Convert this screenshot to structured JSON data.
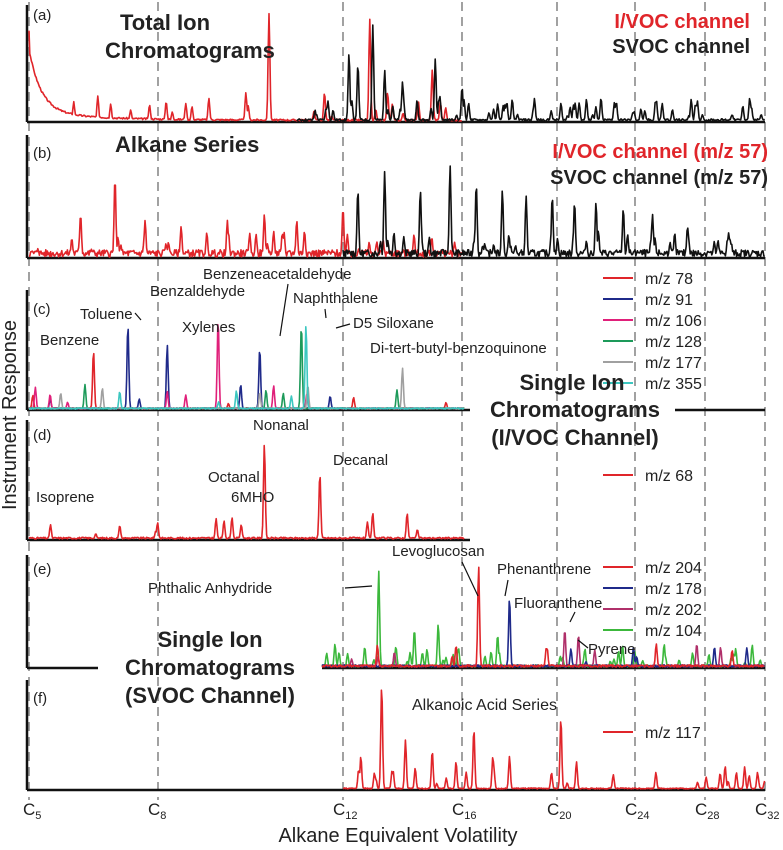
{
  "figure": {
    "ylabel": "Instrument Response",
    "xlabel": "Alkane Equivalent Volatility"
  },
  "colors": {
    "ivoc": "#e0252a",
    "svoc": "#111111",
    "mz78": "#e0252a",
    "mz91": "#1f2a8a",
    "mz106": "#e0207a",
    "mz128": "#1d9a5a",
    "mz177": "#a0a0a0",
    "mz355": "#3cc7c0",
    "mz68": "#e0252a",
    "mz204": "#e0252a",
    "mz178": "#1f2a8a",
    "mz202": "#b0306a",
    "mz104": "#3cb83c",
    "mz117": "#e0252a"
  },
  "chart_data": [
    {
      "panel": "(a)",
      "type": "line",
      "title": "Total Ion\nChromatograms",
      "x_axis": "alkane equivalent volatility (carbon number)",
      "xlim": [
        5,
        32
      ],
      "series": [
        {
          "name": "I/VOC channel",
          "color_key": "ivoc",
          "x_range": [
            5,
            16
          ],
          "peaks": [
            {
              "x": 5.0,
              "y": 0.8
            },
            {
              "x": 6.6,
              "y": 0.22
            },
            {
              "x": 6.9,
              "y": 0.15
            },
            {
              "x": 9.1,
              "y": 0.2
            },
            {
              "x": 9.9,
              "y": 0.25
            },
            {
              "x": 10.4,
              "y": 0.95
            },
            {
              "x": 11.6,
              "y": 0.25
            },
            {
              "x": 12.9,
              "y": 0.9
            },
            {
              "x": 13.5,
              "y": 0.25
            },
            {
              "x": 15.0,
              "y": 0.45
            }
          ]
        },
        {
          "name": "SVOC channel",
          "color_key": "svoc",
          "x_range": [
            11,
            32
          ],
          "peaks": [
            {
              "x": 12.2,
              "y": 0.6
            },
            {
              "x": 12.5,
              "y": 0.5
            },
            {
              "x": 13.0,
              "y": 0.85
            },
            {
              "x": 13.4,
              "y": 0.45
            },
            {
              "x": 14.0,
              "y": 0.35
            },
            {
              "x": 15.1,
              "y": 0.55
            },
            {
              "x": 16.0,
              "y": 0.3
            },
            {
              "x": 17.5,
              "y": 0.15
            },
            {
              "x": 19.0,
              "y": 0.1
            }
          ]
        }
      ]
    },
    {
      "panel": "(b)",
      "type": "line",
      "title": "Alkane Series",
      "xlim": [
        5,
        32
      ],
      "series": [
        {
          "name": "I/VOC channel (m/z 57)",
          "color_key": "ivoc",
          "x_range": [
            5,
            16
          ],
          "peaks": [
            {
              "x": 6.2,
              "y": 0.35
            },
            {
              "x": 7.0,
              "y": 0.65
            },
            {
              "x": 7.7,
              "y": 0.3
            },
            {
              "x": 8.5,
              "y": 0.25
            },
            {
              "x": 9.5,
              "y": 0.3
            },
            {
              "x": 10.3,
              "y": 0.35
            },
            {
              "x": 11.0,
              "y": 0.3
            },
            {
              "x": 12.0,
              "y": 0.4
            }
          ]
        },
        {
          "name": "SVOC channel (m/z 57)",
          "color_key": "svoc",
          "x_range": [
            12,
            32
          ],
          "peaks": [
            {
              "x": 12.5,
              "y": 0.55
            },
            {
              "x": 13.4,
              "y": 0.7
            },
            {
              "x": 14.6,
              "y": 0.55
            },
            {
              "x": 15.6,
              "y": 0.75
            },
            {
              "x": 16.6,
              "y": 0.6
            },
            {
              "x": 17.7,
              "y": 0.55
            },
            {
              "x": 18.7,
              "y": 0.5
            },
            {
              "x": 19.8,
              "y": 0.5
            },
            {
              "x": 20.9,
              "y": 0.45
            },
            {
              "x": 22.0,
              "y": 0.45
            },
            {
              "x": 23.4,
              "y": 0.4
            },
            {
              "x": 25.0,
              "y": 0.35
            },
            {
              "x": 27.0,
              "y": 0.25
            },
            {
              "x": 29.5,
              "y": 0.15
            }
          ]
        }
      ]
    },
    {
      "panel": "(c)",
      "type": "line",
      "title": "Single Ion\nChromatograms\n(I/VOC Channel)",
      "xlim": [
        5,
        32
      ],
      "series": [
        {
          "name": "m/z 78",
          "color_key": "mz78",
          "peaks": [
            {
              "x": 6.5,
              "y": 0.5
            }
          ]
        },
        {
          "name": "m/z 91",
          "color_key": "mz91",
          "peaks": [
            {
              "x": 7.3,
              "y": 0.72
            },
            {
              "x": 8.2,
              "y": 0.55
            },
            {
              "x": 10.2,
              "y": 0.52
            }
          ]
        },
        {
          "name": "m/z 106",
          "color_key": "mz106",
          "peaks": [
            {
              "x": 8.2,
              "y": 0.15
            },
            {
              "x": 8.6,
              "y": 0.12
            },
            {
              "x": 9.3,
              "y": 0.77
            },
            {
              "x": 10.5,
              "y": 0.2
            }
          ]
        },
        {
          "name": "m/z 128",
          "color_key": "mz128",
          "peaks": [
            {
              "x": 11.1,
              "y": 0.72
            }
          ]
        },
        {
          "name": "m/z 177",
          "color_key": "mz177",
          "peaks": [
            {
              "x": 14.0,
              "y": 0.35
            }
          ]
        },
        {
          "name": "m/z 355",
          "color_key": "mz355",
          "peaks": [
            {
              "x": 11.2,
              "y": 0.72
            }
          ]
        }
      ],
      "annotations": [
        "Benzene",
        "Toluene",
        "Xylenes",
        "Benzaldehyde",
        "Benzeneacetaldehyde",
        "Naphthalene",
        "D5 Siloxane",
        "Di-tert-butyl-benzoquinone"
      ]
    },
    {
      "panel": "(d)",
      "type": "line",
      "xlim": [
        5,
        32
      ],
      "series": [
        {
          "name": "m/z 68",
          "color_key": "mz68",
          "peaks": [
            {
              "x": 5.5,
              "y": 0.12
            },
            {
              "x": 9.6,
              "y": 0.18
            },
            {
              "x": 9.8,
              "y": 0.12
            },
            {
              "x": 10.3,
              "y": 0.8
            },
            {
              "x": 11.5,
              "y": 0.55
            },
            {
              "x": 13.0,
              "y": 0.22
            },
            {
              "x": 14.5,
              "y": 0.08
            }
          ]
        }
      ],
      "annotations": [
        "Isoprene",
        "Octanal",
        "6MHO",
        "Nonanal",
        "Decanal"
      ]
    },
    {
      "panel": "(e)",
      "type": "line",
      "title": "Single Ion\nChromatograms\n(SVOC Channel)",
      "xlim": [
        5,
        32
      ],
      "series": [
        {
          "name": "m/z 204",
          "color_key": "mz204",
          "peaks": [
            {
              "x": 15.8,
              "y": 0.2
            },
            {
              "x": 16.7,
              "y": 0.95
            }
          ]
        },
        {
          "name": "m/z 178",
          "color_key": "mz178",
          "peaks": [
            {
              "x": 18.0,
              "y": 0.65
            }
          ]
        },
        {
          "name": "m/z 202",
          "color_key": "mz202",
          "peaks": [
            {
              "x": 20.4,
              "y": 0.35
            },
            {
              "x": 21.1,
              "y": 0.3
            }
          ]
        },
        {
          "name": "m/z 104",
          "color_key": "mz104",
          "peaks": [
            {
              "x": 13.2,
              "y": 0.9
            },
            {
              "x": 14.4,
              "y": 0.35
            },
            {
              "x": 15.2,
              "y": 0.4
            },
            {
              "x": 17.5,
              "y": 0.3
            }
          ]
        }
      ],
      "annotations": [
        "Phthalic Anhydride",
        "Levoglucosan",
        "Phenanthrene",
        "Fluoranthene",
        "Pyrene"
      ]
    },
    {
      "panel": "(f)",
      "type": "line",
      "xlim": [
        5,
        32
      ],
      "series": [
        {
          "name": "m/z 117",
          "color_key": "mz117",
          "peaks": [
            {
              "x": 12.6,
              "y": 0.3
            },
            {
              "x": 13.3,
              "y": 0.95
            },
            {
              "x": 14.1,
              "y": 0.45
            },
            {
              "x": 15.0,
              "y": 0.35
            },
            {
              "x": 15.8,
              "y": 0.25
            },
            {
              "x": 16.5,
              "y": 0.55
            },
            {
              "x": 17.3,
              "y": 0.3
            },
            {
              "x": 18.0,
              "y": 0.3
            },
            {
              "x": 20.2,
              "y": 0.65
            },
            {
              "x": 21.0,
              "y": 0.25
            }
          ]
        }
      ],
      "annotations": [
        "Alkanoic Acid Series"
      ]
    }
  ],
  "x_ticks": [
    {
      "label": "C",
      "sub": "5"
    },
    {
      "label": "C",
      "sub": "8"
    },
    {
      "label": "C",
      "sub": "12"
    },
    {
      "label": "C",
      "sub": "16"
    },
    {
      "label": "C",
      "sub": "20"
    },
    {
      "label": "C",
      "sub": "24"
    },
    {
      "label": "C",
      "sub": "28"
    },
    {
      "label": "C",
      "sub": "32"
    }
  ],
  "text": {
    "a_label": "(a)",
    "b_label": "(b)",
    "c_label": "(c)",
    "d_label": "(d)",
    "e_label": "(e)",
    "f_label": "(f)",
    "a_title1": "Total Ion",
    "a_title2": "Chromatograms",
    "a_leg1": "I/VOC channel",
    "a_leg2": "SVOC channel",
    "b_title": "Alkane Series",
    "b_leg1": "I/VOC channel (m/z 57)",
    "b_leg2": "SVOC channel (m/z 57)",
    "c_title1": "Single Ion",
    "c_title2": "Chromatograms",
    "c_title3": "(I/VOC Channel)",
    "c_leg": [
      "m/z 78",
      "m/z 91",
      "m/z 106",
      "m/z 128",
      "m/z 177",
      "m/z 355"
    ],
    "c_ann": {
      "benzene": "Benzene",
      "toluene": "Toluene",
      "xylenes": "Xylenes",
      "benzaldehyde": "Benzaldehyde",
      "benzeneacetaldehyde": "Benzeneacetaldehyde",
      "naphthalene": "Naphthalene",
      "siloxane": "D5 Siloxane",
      "benzoquinone": "Di-tert-butyl-benzoquinone"
    },
    "d_leg": "m/z 68",
    "d_ann": {
      "isoprene": "Isoprene",
      "octanal": "Octanal",
      "mho": "6MHO",
      "nonanal": "Nonanal",
      "decanal": "Decanal"
    },
    "e_title1": "Single Ion",
    "e_title2": "Chromatograms",
    "e_title3": "(SVOC Channel)",
    "e_leg": [
      "m/z 204",
      "m/z 178",
      "m/z 202",
      "m/z 104"
    ],
    "e_ann": {
      "phthalic": "Phthalic Anhydride",
      "levoglucosan": "Levoglucosan",
      "phenanthrene": "Phenanthrene",
      "fluoranthene": "Fluoranthene",
      "pyrene": "Pyrene"
    },
    "f_leg": "m/z 117",
    "f_ann": "Alkanoic Acid Series"
  }
}
